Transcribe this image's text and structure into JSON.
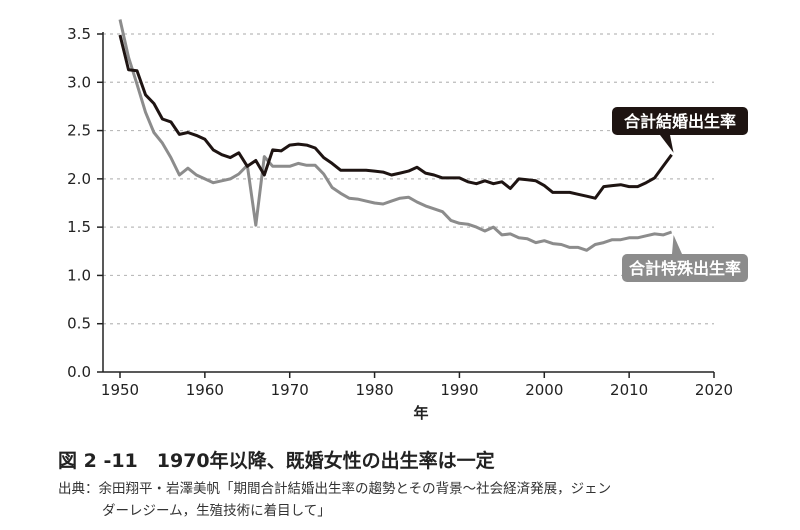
{
  "chart_data": {
    "type": "line",
    "title": "",
    "xlabel": "年",
    "ylabel": "",
    "xlim": [
      1950,
      2020
    ],
    "ylim": [
      0,
      3.5
    ],
    "xticks": [
      "1950",
      "1960",
      "1970",
      "1980",
      "1990",
      "2000",
      "2010",
      "2020"
    ],
    "yticks": [
      "0.0",
      "0.5",
      "1.0",
      "1.5",
      "2.0",
      "2.5",
      "3.0",
      "3.5"
    ],
    "grid": "horizontal dotted",
    "x": [
      1950,
      1951,
      1952,
      1953,
      1954,
      1955,
      1956,
      1957,
      1958,
      1959,
      1960,
      1961,
      1962,
      1963,
      1964,
      1965,
      1966,
      1967,
      1968,
      1969,
      1970,
      1971,
      1972,
      1973,
      1974,
      1975,
      1976,
      1977,
      1978,
      1979,
      1980,
      1981,
      1982,
      1983,
      1984,
      1985,
      1986,
      1987,
      1988,
      1989,
      1990,
      1991,
      1992,
      1993,
      1994,
      1995,
      1996,
      1997,
      1998,
      1999,
      2000,
      2001,
      2002,
      2003,
      2004,
      2005,
      2006,
      2007,
      2008,
      2009,
      2010,
      2011,
      2012,
      2013,
      2014,
      2015
    ],
    "series": [
      {
        "name": "合計結婚出生率",
        "color": "#1e1412",
        "values": [
          3.49,
          3.13,
          3.12,
          2.87,
          2.78,
          2.62,
          2.59,
          2.46,
          2.48,
          2.45,
          2.41,
          2.3,
          2.25,
          2.22,
          2.27,
          2.13,
          2.19,
          2.04,
          2.3,
          2.29,
          2.35,
          2.36,
          2.35,
          2.32,
          2.22,
          2.16,
          2.09,
          2.09,
          2.09,
          2.09,
          2.08,
          2.07,
          2.04,
          2.06,
          2.08,
          2.12,
          2.06,
          2.04,
          2.01,
          2.01,
          2.01,
          1.97,
          1.95,
          1.98,
          1.95,
          1.97,
          1.9,
          2.0,
          1.99,
          1.98,
          1.93,
          1.86,
          1.86,
          1.86,
          1.84,
          1.82,
          1.8,
          1.92,
          1.93,
          1.94,
          1.92,
          1.92,
          1.96,
          2.01,
          2.13,
          2.25
        ]
      },
      {
        "name": "合計特殊出生率",
        "color": "#8c8c8c",
        "values": [
          3.65,
          3.26,
          2.98,
          2.69,
          2.48,
          2.37,
          2.22,
          2.04,
          2.11,
          2.04,
          2.0,
          1.96,
          1.98,
          2.0,
          2.05,
          2.14,
          1.52,
          2.23,
          2.13,
          2.13,
          2.13,
          2.16,
          2.14,
          2.14,
          2.05,
          1.91,
          1.85,
          1.8,
          1.79,
          1.77,
          1.75,
          1.74,
          1.77,
          1.8,
          1.81,
          1.76,
          1.72,
          1.69,
          1.66,
          1.57,
          1.54,
          1.53,
          1.5,
          1.46,
          1.5,
          1.42,
          1.43,
          1.39,
          1.38,
          1.34,
          1.36,
          1.33,
          1.32,
          1.29,
          1.29,
          1.26,
          1.32,
          1.34,
          1.37,
          1.37,
          1.39,
          1.39,
          1.41,
          1.43,
          1.42,
          1.45
        ]
      }
    ]
  },
  "figure": {
    "title": "図 2 -11　1970年以降、既婚女性の出生率は一定",
    "source_line1": "出典：余田翔平・岩澤美帆「期間合計結婚出生率の趨勢とその背景〜社会経済発展，ジェン",
    "source_line2": "ダーレジーム，生殖技術に着目して」"
  }
}
